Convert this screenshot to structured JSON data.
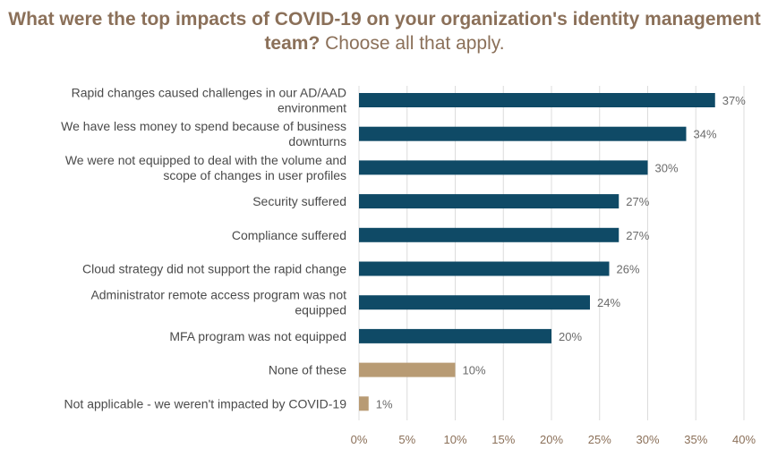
{
  "title": {
    "bold": "What were the top impacts of COVID-19 on your organization's identity management team?",
    "light": "Choose all that apply."
  },
  "colors": {
    "primary_bar": "#0f4a66",
    "highlight_bar": "#b89b74",
    "title": "#8b7059"
  },
  "chart_data": {
    "type": "bar",
    "orientation": "horizontal",
    "title": "What were the top impacts of COVID-19 on your organization's identity management team? Choose all that apply.",
    "categories": [
      [
        "Rapid changes caused challenges in our AD/AAD",
        "environment"
      ],
      [
        "We have less money to spend because of business",
        "downturns"
      ],
      [
        "We were not equipped to deal with the volume and",
        "scope of changes in user profiles"
      ],
      [
        "Security suffered"
      ],
      [
        "Compliance suffered"
      ],
      [
        "Cloud strategy did not support the rapid change"
      ],
      [
        "Administrator remote access program was not",
        "equipped"
      ],
      [
        "MFA program was not equipped"
      ],
      [
        "None of these"
      ],
      [
        "Not applicable -  we weren't impacted by COVID-19"
      ]
    ],
    "values": [
      37,
      34,
      30,
      27,
      27,
      26,
      24,
      20,
      10,
      1
    ],
    "value_labels": [
      "37%",
      "34%",
      "30%",
      "27%",
      "27%",
      "26%",
      "24%",
      "20%",
      "10%",
      "1%"
    ],
    "highlighted": [
      false,
      false,
      false,
      false,
      false,
      false,
      false,
      false,
      true,
      true
    ],
    "xlim": [
      0,
      40
    ],
    "xticks": [
      "0%",
      "5%",
      "10%",
      "15%",
      "20%",
      "25%",
      "30%",
      "35%",
      "40%"
    ],
    "grid": true,
    "xlabel": "",
    "ylabel": ""
  }
}
